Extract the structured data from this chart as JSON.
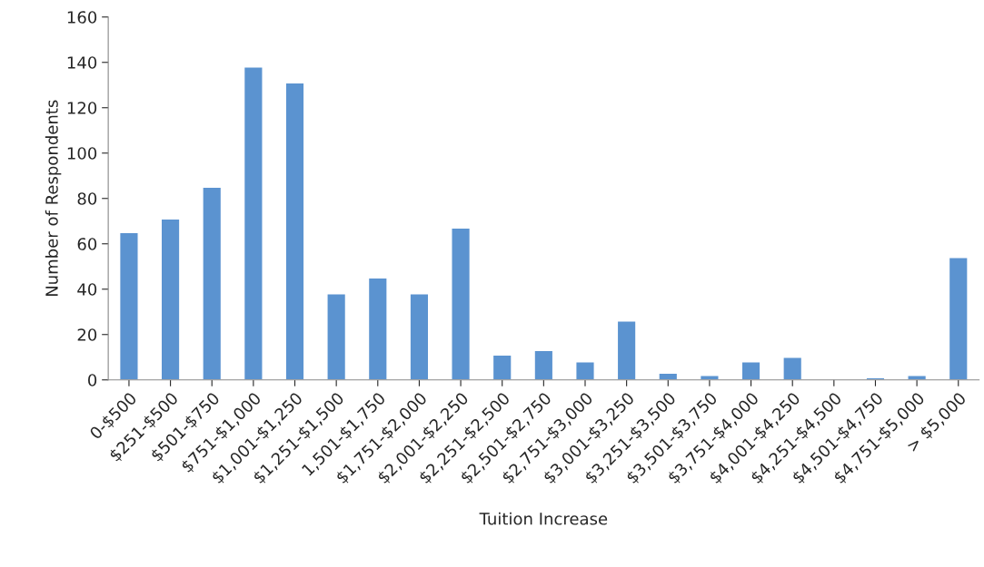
{
  "chart_data": {
    "type": "bar",
    "xlabel": "Tuition Increase",
    "ylabel": "Number of Respondents",
    "categories": [
      "0-$500",
      "$251-$500",
      "$501-$750",
      "$751-$1,000",
      "$1,001-$1,250",
      "$1,251-$1,500",
      "1,501-$1,750",
      "$1,751-$2,000",
      "$2,001-$2,250",
      "$2,251-$2,500",
      "$2,501-$2,750",
      "$2,751-$3,000",
      "$3,001-$3,250",
      "$3,251-$3,500",
      "$3,501-$3,750",
      "$3,751-$4,000",
      "$4,001-$4,250",
      "$4,251-$4,500",
      "$4,501-$4,750",
      "$4,751-$5,000",
      "> $5,000"
    ],
    "values": [
      65,
      71,
      85,
      138,
      131,
      38,
      45,
      38,
      67,
      11,
      13,
      8,
      26,
      3,
      2,
      8,
      10,
      null,
      1,
      2,
      54
    ],
    "color": "#5b93d0",
    "ylim": [
      0,
      160
    ],
    "yticks": [
      0,
      20,
      40,
      60,
      80,
      100,
      120,
      140,
      160
    ],
    "grid": false
  }
}
